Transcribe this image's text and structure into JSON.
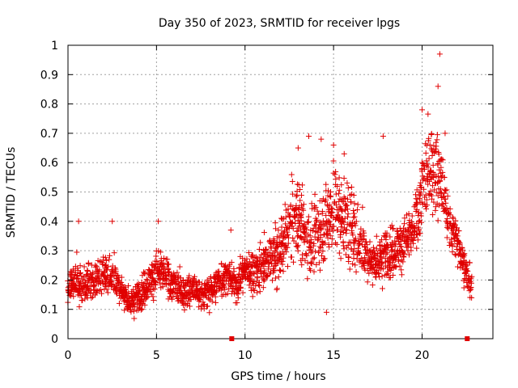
{
  "chart_data": {
    "type": "scatter",
    "title": "Day 350 of 2023, SRMTID for receiver lpgs",
    "xlabel": "GPS time / hours",
    "ylabel": "SRMTID / TECUs",
    "xlim": [
      0,
      24
    ],
    "ylim": [
      0,
      1
    ],
    "x_ticks": [
      0,
      5,
      10,
      15,
      20
    ],
    "y_ticks": [
      0,
      0.1,
      0.2,
      0.3,
      0.4,
      0.5,
      0.6,
      0.7,
      0.8,
      0.9,
      1
    ],
    "x_tick_labels": [
      "0",
      "5",
      "10",
      "15",
      "20"
    ],
    "y_tick_labels": [
      "0",
      "0.1",
      "0.2",
      "0.3",
      "0.4",
      "0.5",
      "0.6",
      "0.7",
      "0.8",
      "0.9",
      "1"
    ],
    "grid": true,
    "marker": "plus",
    "color": "#e00000",
    "series": [
      {
        "name": "SRMTID",
        "trend": [
          [
            0.0,
            0.17,
            0.05
          ],
          [
            0.5,
            0.2,
            0.06
          ],
          [
            1.0,
            0.18,
            0.05
          ],
          [
            1.5,
            0.2,
            0.05
          ],
          [
            2.0,
            0.22,
            0.05
          ],
          [
            2.5,
            0.22,
            0.06
          ],
          [
            3.0,
            0.17,
            0.05
          ],
          [
            3.5,
            0.12,
            0.04
          ],
          [
            4.0,
            0.15,
            0.05
          ],
          [
            4.5,
            0.19,
            0.05
          ],
          [
            5.0,
            0.23,
            0.06
          ],
          [
            5.5,
            0.21,
            0.06
          ],
          [
            6.0,
            0.18,
            0.05
          ],
          [
            6.5,
            0.16,
            0.05
          ],
          [
            7.0,
            0.17,
            0.05
          ],
          [
            7.5,
            0.15,
            0.05
          ],
          [
            8.0,
            0.16,
            0.05
          ],
          [
            8.5,
            0.2,
            0.05
          ],
          [
            9.0,
            0.22,
            0.05
          ],
          [
            9.5,
            0.18,
            0.05
          ],
          [
            10.0,
            0.24,
            0.05
          ],
          [
            10.5,
            0.23,
            0.06
          ],
          [
            11.0,
            0.25,
            0.07
          ],
          [
            11.5,
            0.28,
            0.07
          ],
          [
            12.0,
            0.3,
            0.08
          ],
          [
            12.5,
            0.38,
            0.1
          ],
          [
            13.0,
            0.42,
            0.12
          ],
          [
            13.5,
            0.33,
            0.1
          ],
          [
            14.0,
            0.35,
            0.1
          ],
          [
            14.5,
            0.4,
            0.12
          ],
          [
            15.0,
            0.45,
            0.13
          ],
          [
            15.5,
            0.42,
            0.12
          ],
          [
            16.0,
            0.38,
            0.12
          ],
          [
            16.5,
            0.33,
            0.1
          ],
          [
            17.0,
            0.27,
            0.07
          ],
          [
            17.5,
            0.26,
            0.07
          ],
          [
            18.0,
            0.3,
            0.08
          ],
          [
            18.5,
            0.31,
            0.07
          ],
          [
            19.0,
            0.33,
            0.07
          ],
          [
            19.5,
            0.35,
            0.07
          ],
          [
            20.0,
            0.5,
            0.12
          ],
          [
            20.5,
            0.6,
            0.13
          ],
          [
            21.0,
            0.55,
            0.14
          ],
          [
            21.5,
            0.4,
            0.08
          ],
          [
            22.0,
            0.33,
            0.06
          ],
          [
            22.5,
            0.22,
            0.06
          ],
          [
            22.8,
            0.2,
            0.05
          ]
        ],
        "spikes": [
          [
            0.6,
            0.4
          ],
          [
            2.5,
            0.4
          ],
          [
            5.1,
            0.4
          ],
          [
            9.2,
            0.37
          ],
          [
            13.0,
            0.65
          ],
          [
            13.6,
            0.69
          ],
          [
            14.3,
            0.68
          ],
          [
            15.0,
            0.66
          ],
          [
            15.6,
            0.63
          ],
          [
            17.8,
            0.69
          ],
          [
            20.0,
            0.78
          ],
          [
            20.9,
            0.86
          ],
          [
            21.0,
            0.97
          ],
          [
            21.3,
            0.7
          ],
          [
            14.6,
            0.09
          ]
        ],
        "data_gaps_hours": [
          9.25,
          22.55
        ]
      }
    ]
  }
}
